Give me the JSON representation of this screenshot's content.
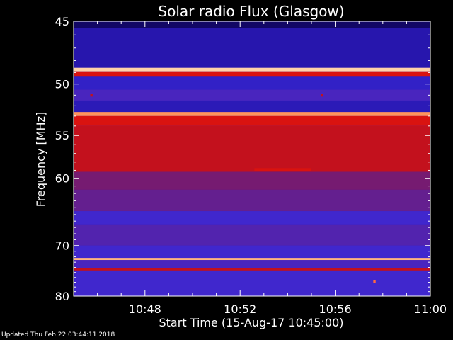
{
  "chart_data": {
    "type": "heatmap",
    "title": "Solar radio Flux (Glasgow)",
    "xlabel": "Start Time (15-Aug-17 10:45:00)",
    "ylabel": "Frequency [MHz]",
    "x_range": [
      "10:45",
      "11:00"
    ],
    "x_ticks": [
      "10:48",
      "10:52",
      "10:56",
      "11:00"
    ],
    "y_range": [
      45,
      80
    ],
    "y_ticks": [
      "45",
      "50",
      "55",
      "60",
      "70",
      "80"
    ],
    "y_tick_values": [
      45,
      50,
      55,
      60,
      70,
      80
    ],
    "x_tick_minutes": [
      48,
      52,
      56,
      60
    ],
    "colormap": [
      "#000000",
      "#1a0a90",
      "#3a28d8",
      "#7a1a6a",
      "#d01010",
      "#ff2010",
      "#ff9a60",
      "#fff2d0"
    ],
    "bands": [
      {
        "from": 45.0,
        "to": 45.5,
        "level": 0.1
      },
      {
        "from": 45.5,
        "to": 48.6,
        "level": 0.2
      },
      {
        "from": 48.6,
        "to": 48.9,
        "level": 0.95
      },
      {
        "from": 48.9,
        "to": 49.3,
        "level": 0.6
      },
      {
        "from": 49.3,
        "to": 50.5,
        "level": 0.25
      },
      {
        "from": 50.5,
        "to": 51.5,
        "level": 0.32
      },
      {
        "from": 51.5,
        "to": 52.6,
        "level": 0.22
      },
      {
        "from": 52.6,
        "to": 53.0,
        "level": 0.85
      },
      {
        "from": 53.0,
        "to": 54.0,
        "level": 0.6
      },
      {
        "from": 54.0,
        "to": 59.2,
        "level": 0.55
      },
      {
        "from": 59.2,
        "to": 61.5,
        "level": 0.42
      },
      {
        "from": 61.5,
        "to": 64.5,
        "level": 0.38
      },
      {
        "from": 64.5,
        "to": 66.5,
        "level": 0.3
      },
      {
        "from": 66.5,
        "to": 70.0,
        "level": 0.34
      },
      {
        "from": 70.0,
        "to": 72.2,
        "level": 0.3
      },
      {
        "from": 72.2,
        "to": 72.6,
        "level": 0.9
      },
      {
        "from": 72.6,
        "to": 74.2,
        "level": 0.32
      },
      {
        "from": 74.2,
        "to": 74.6,
        "level": 0.55
      },
      {
        "from": 74.6,
        "to": 80.0,
        "level": 0.3
      }
    ],
    "features": [
      {
        "freq": 58.9,
        "t_start": 52.6,
        "t_end": 55.0,
        "level": 0.6
      },
      {
        "freq": 76.8,
        "t_start": 57.6,
        "t_end": 57.7,
        "level": 0.8
      },
      {
        "freq": 51.0,
        "t_start": 45.7,
        "t_end": 45.8,
        "level": 0.55
      },
      {
        "freq": 51.0,
        "t_start": 55.4,
        "t_end": 55.5,
        "level": 0.55
      }
    ]
  },
  "footer": "Updated Thu Feb 22 03:44:11 2018"
}
